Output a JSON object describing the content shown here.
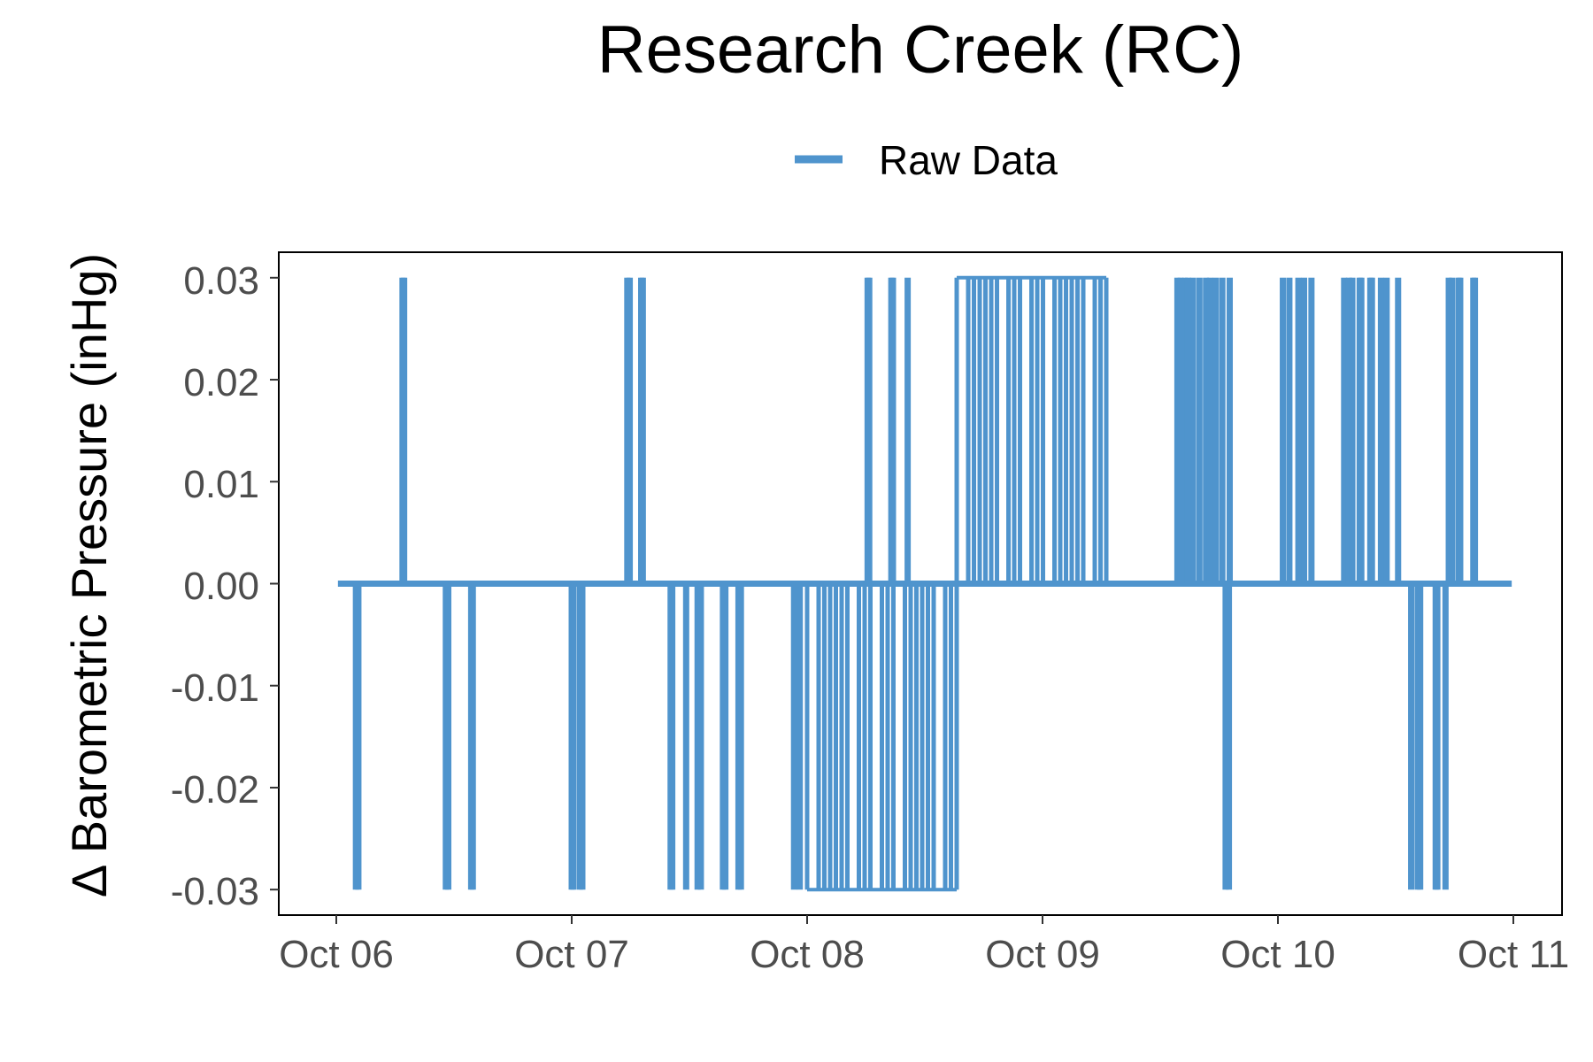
{
  "chart_data": {
    "type": "line",
    "title": "Research Creek (RC)",
    "xlabel": "",
    "ylabel": "Δ Barometric Pressure (inHg)",
    "x_ticks": [
      "Oct 06",
      "Oct 07",
      "Oct 08",
      "Oct 09",
      "Oct 10",
      "Oct 11"
    ],
    "y_ticks": [
      "0.03",
      "0.02",
      "0.01",
      "0.00",
      "-0.01",
      "-0.02",
      "-0.03"
    ],
    "xlim": [
      "Oct 05 23:48",
      "Oct 11 00:30"
    ],
    "ylim": [
      -0.0325,
      0.0325
    ],
    "grid": false,
    "legend_position": "top",
    "series": [
      {
        "name": "Raw Data",
        "color": "#4f94cd",
        "baseline": 0.0,
        "x_range": [
          "Oct 06 00:10",
          "Oct 10 23:50"
        ],
        "spikes_up_0_03": [
          "Oct 06 06:45",
          "Oct 06 06:55",
          "Oct 07 05:40",
          "Oct 07 05:55",
          "Oct 07 07:05",
          "Oct 07 07:15",
          "Oct 08 06:10",
          "Oct 08 06:20",
          "Oct 08 08:35",
          "Oct 08 08:45",
          "Oct 08 10:15",
          "Oct 09 13:45",
          "Oct 09 14:05",
          "Oct 09 14:30",
          "Oct 09 14:50",
          "Oct 09 15:20",
          "Oct 09 16:00",
          "Oct 09 16:40",
          "Oct 09 17:05",
          "Oct 09 17:40",
          "Oct 09 18:20",
          "Oct 09 19:05",
          "Oct 10 00:30",
          "Oct 10 01:10",
          "Oct 10 02:05",
          "Oct 10 02:40",
          "Oct 10 03:25",
          "Oct 10 06:45",
          "Oct 10 07:15",
          "Oct 10 07:35",
          "Oct 10 08:20",
          "Oct 10 08:30",
          "Oct 10 09:25",
          "Oct 10 09:35",
          "Oct 10 10:30",
          "Oct 10 11:05",
          "Oct 10 12:15",
          "Oct 10 17:25",
          "Oct 10 17:45",
          "Oct 10 18:25",
          "Oct 10 18:35",
          "Oct 10 19:55",
          "Oct 10 20:05"
        ],
        "spikes_down_-0_03": [
          "Oct 06 02:00",
          "Oct 06 02:15",
          "Oct 06 11:10",
          "Oct 06 11:25",
          "Oct 06 13:45",
          "Oct 06 13:55",
          "Oct 07 00:00",
          "Oct 07 00:10",
          "Oct 07 00:50",
          "Oct 07 01:05",
          "Oct 07 10:05",
          "Oct 07 10:15",
          "Oct 07 11:40",
          "Oct 07 12:50",
          "Oct 07 13:10",
          "Oct 07 15:25",
          "Oct 07 15:40",
          "Oct 07 17:00",
          "Oct 07 17:15",
          "Oct 07 22:40",
          "Oct 07 23:15",
          "Oct 09 18:40",
          "Oct 09 19:00",
          "Oct 10 13:35",
          "Oct 10 14:15",
          "Oct 10 14:30",
          "Oct 10 16:05",
          "Oct 10 16:15",
          "Oct 10 17:05"
        ],
        "dense_negative_band": [
          "Oct 08 00:00",
          "Oct 08 15:15"
        ],
        "dense_positive_band": [
          "Oct 08 15:15",
          "Oct 09 06:30"
        ],
        "intermediate_values": [
          0.02,
          0.01,
          -0.01,
          -0.02
        ]
      }
    ]
  }
}
